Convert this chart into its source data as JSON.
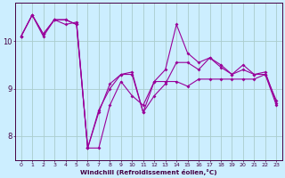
{
  "title": "",
  "xlabel": "Windchill (Refroidissement éolien,°C)",
  "ylabel": "",
  "background_color": "#cceeff",
  "grid_color": "#aacccc",
  "line_color": "#990099",
  "x": [
    0,
    1,
    2,
    3,
    4,
    5,
    6,
    7,
    8,
    9,
    10,
    11,
    12,
    13,
    14,
    15,
    16,
    17,
    18,
    19,
    20,
    21,
    22,
    23
  ],
  "series1": [
    10.1,
    10.55,
    10.1,
    10.45,
    10.45,
    10.35,
    7.75,
    7.75,
    8.65,
    9.15,
    8.85,
    8.65,
    9.15,
    9.15,
    9.15,
    9.05,
    9.2,
    9.2,
    9.2,
    9.2,
    9.2,
    9.2,
    9.3,
    8.75
  ],
  "series2": [
    10.1,
    10.55,
    10.15,
    10.45,
    10.45,
    10.35,
    7.75,
    8.5,
    9.1,
    9.3,
    9.3,
    8.5,
    9.15,
    9.4,
    10.35,
    9.75,
    9.55,
    9.65,
    9.5,
    9.3,
    9.5,
    9.3,
    9.35,
    8.7
  ],
  "series3": [
    10.1,
    10.55,
    10.15,
    10.45,
    10.35,
    10.4,
    7.75,
    8.55,
    9.0,
    9.3,
    9.35,
    8.5,
    8.85,
    9.1,
    9.55,
    9.55,
    9.4,
    9.65,
    9.45,
    9.3,
    9.4,
    9.3,
    9.3,
    8.65
  ],
  "ylim": [
    7.5,
    10.8
  ],
  "yticks": [
    8,
    9,
    10
  ],
  "xlim": [
    -0.5,
    23.5
  ]
}
